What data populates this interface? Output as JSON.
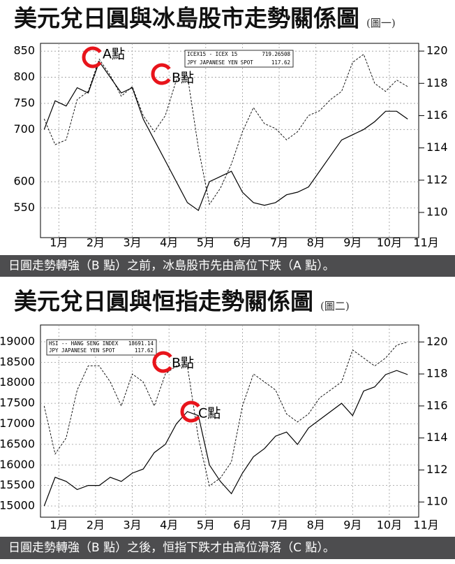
{
  "chart_data": [
    {
      "type": "line",
      "title": "美元兌日圓與冰島股市走勢關係圖",
      "figure_label": "(圖一)",
      "caption": "日圓走勢轉強（B 點）之前，冰島股市先由高位下跌（A 點）。",
      "annotations": [
        "A點",
        "B點"
      ],
      "grid": true,
      "xlim": [
        0.5,
        10.8
      ],
      "xticks": [
        {
          "value": 1,
          "label": "1月"
        },
        {
          "value": 2,
          "label": "2月"
        },
        {
          "value": 3,
          "label": "3月"
        },
        {
          "value": 4,
          "label": "4月"
        },
        {
          "value": 5,
          "label": "5月"
        },
        {
          "value": 6,
          "label": "6月"
        },
        {
          "value": 7,
          "label": "7月"
        },
        {
          "value": 8,
          "label": "8月"
        },
        {
          "value": 9,
          "label": "9月"
        },
        {
          "value": 10,
          "label": "10月"
        },
        {
          "value": 11,
          "label": "11月"
        }
      ],
      "ylim": [
        493,
        865
      ],
      "yticks": [
        550,
        600,
        700,
        750,
        800,
        850
      ],
      "y2lim": [
        108.44,
        120.48
      ],
      "y2ticks": [
        110,
        112,
        114,
        116,
        118,
        120
      ],
      "x": [
        0.6,
        0.9,
        1.2,
        1.5,
        1.8,
        2.1,
        2.4,
        2.7,
        3.0,
        3.3,
        3.6,
        3.9,
        4.2,
        4.5,
        4.8,
        5.1,
        5.4,
        5.7,
        6.0,
        6.3,
        6.6,
        6.9,
        7.2,
        7.5,
        7.8,
        8.1,
        8.4,
        8.7,
        9.0,
        9.3,
        9.6,
        9.9,
        10.2,
        10.5
      ],
      "series": [
        {
          "name": "ICEX15 - ICEX 15",
          "legend_value": 719.26508,
          "color": "#000000",
          "dash": false,
          "values": [
            700,
            755,
            745,
            780,
            770,
            830,
            800,
            770,
            780,
            720,
            680,
            640,
            600,
            560,
            545,
            600,
            610,
            620,
            580,
            560,
            555,
            560,
            575,
            580,
            590,
            620,
            650,
            680,
            690,
            700,
            715,
            735,
            735,
            720
          ]
        },
        {
          "name": "JPY  JAPANESE YEN SPOT",
          "legend_value": 117.62,
          "color": "#000000",
          "dash": true,
          "axis": "y2",
          "values": [
            115.8,
            114.2,
            114.5,
            117,
            117.5,
            119.5,
            118.5,
            117.2,
            117.8,
            116,
            115,
            116,
            118.2,
            118.5,
            114,
            110.5,
            111.5,
            113,
            115,
            116.5,
            115.5,
            115.2,
            114.5,
            115,
            116,
            116.3,
            117,
            117.5,
            119.3,
            119.8,
            118,
            117.5,
            118.2,
            117.8
          ]
        }
      ]
    },
    {
      "type": "line",
      "title": "美元兌日圓與恒指走勢關係圖",
      "figure_label": "(圖二)",
      "caption": "日圓走勢轉強（B 點）之後，恒指下跌才由高位滑落（C 點）。",
      "annotations": [
        "B點",
        "C點"
      ],
      "grid": true,
      "xlim": [
        0.5,
        10.8
      ],
      "xticks": [
        {
          "value": 1,
          "label": "1月"
        },
        {
          "value": 2,
          "label": "2月"
        },
        {
          "value": 3,
          "label": "3月"
        },
        {
          "value": 4,
          "label": "4月"
        },
        {
          "value": 5,
          "label": "5月"
        },
        {
          "value": 6,
          "label": "6月"
        },
        {
          "value": 7,
          "label": "7月"
        },
        {
          "value": 8,
          "label": "8月"
        },
        {
          "value": 9,
          "label": "9月"
        },
        {
          "value": 10,
          "label": "10月"
        },
        {
          "value": 11,
          "label": "11月"
        }
      ],
      "ylim": [
        14728,
        19408
      ],
      "yticks": [
        15000,
        15500,
        16000,
        16500,
        17000,
        17500,
        18000,
        18500,
        19000
      ],
      "y2lim": [
        109.05,
        121.06
      ],
      "y2ticks": [
        110,
        112,
        114,
        116,
        118,
        120
      ],
      "x": [
        0.6,
        0.9,
        1.2,
        1.5,
        1.8,
        2.1,
        2.4,
        2.7,
        3.0,
        3.3,
        3.6,
        3.9,
        4.2,
        4.5,
        4.8,
        5.1,
        5.4,
        5.7,
        6.0,
        6.3,
        6.6,
        6.9,
        7.2,
        7.5,
        7.8,
        8.1,
        8.4,
        8.7,
        9.0,
        9.3,
        9.6,
        9.9,
        10.2,
        10.5
      ],
      "series": [
        {
          "name": "HSI -- HANG SENG INDEX",
          "legend_value": 18691.14,
          "color": "#000000",
          "dash": false,
          "values": [
            15000,
            15700,
            15600,
            15400,
            15500,
            15500,
            15700,
            15600,
            15800,
            15900,
            16300,
            16500,
            17000,
            17300,
            17200,
            16000,
            15600,
            15300,
            15800,
            16200,
            16400,
            16700,
            16800,
            16500,
            16900,
            17100,
            17300,
            17500,
            17200,
            17800,
            17900,
            18200,
            18300,
            18200
          ]
        },
        {
          "name": "JPY  JAPANESE YEN SPOT",
          "legend_value": 117.62,
          "color": "#000000",
          "dash": true,
          "axis": "y2",
          "values": [
            116,
            113,
            114,
            117,
            118.5,
            118.5,
            117.5,
            116,
            118,
            117.5,
            116,
            118,
            118.5,
            118.5,
            114,
            111,
            111.5,
            112.5,
            116,
            118,
            117.5,
            117,
            115.5,
            115,
            115.5,
            116.5,
            117,
            117.5,
            119.5,
            119,
            118.5,
            119,
            119.8,
            120
          ]
        }
      ]
    }
  ]
}
